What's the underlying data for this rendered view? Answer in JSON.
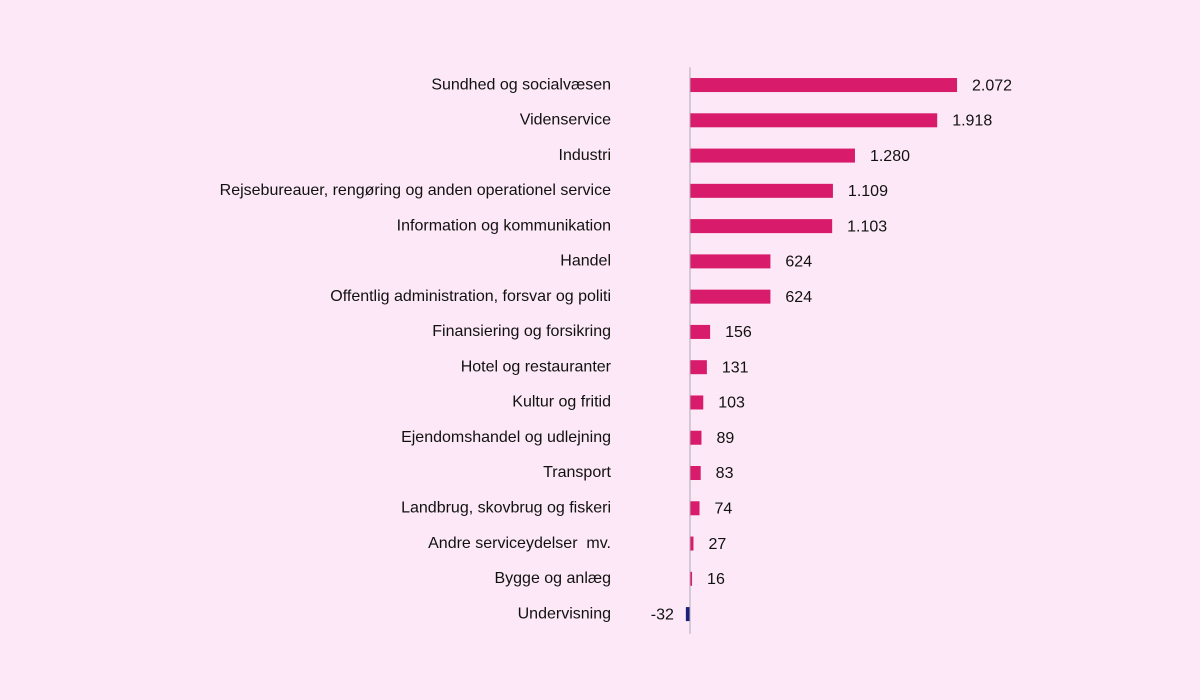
{
  "chart_data": {
    "type": "hbar",
    "categories": [
      "Sundhed og socialvæsen",
      "Videnservice",
      "Industri",
      "Rejsebureauer, rengøring og anden operationel service",
      "Information og kommunikation",
      "Handel",
      "Offentlig administration, forsvar og politi",
      "Finansiering og forsikring",
      "Hotel og restauranter",
      "Kultur og fritid",
      "Ejendomshandel og udlejning",
      "Transport",
      "Landbrug, skovbrug og fiskeri",
      "Andre serviceydelser  mv.",
      "Bygge og anlæg",
      "Undervisning"
    ],
    "values": [
      2072,
      1918,
      1280,
      1109,
      1103,
      624,
      624,
      156,
      131,
      103,
      89,
      83,
      74,
      27,
      16,
      -32
    ],
    "value_labels": [
      "2.072",
      "1.918",
      "1.280",
      "1.109",
      "1.103",
      "624",
      "624",
      "156",
      "131",
      "103",
      "89",
      "83",
      "74",
      "27",
      "16",
      "-32"
    ],
    "colors": [
      "#d81b6a",
      "#d81b6a",
      "#d81b6a",
      "#d81b6a",
      "#d81b6a",
      "#d81b6a",
      "#d81b6a",
      "#d81b6a",
      "#d81b6a",
      "#d81b6a",
      "#d81b6a",
      "#d81b6a",
      "#d81b6a",
      "#d81b6a",
      "#d81b6a",
      "#1a1f7a"
    ],
    "xlim": [
      -100,
      2600
    ]
  }
}
